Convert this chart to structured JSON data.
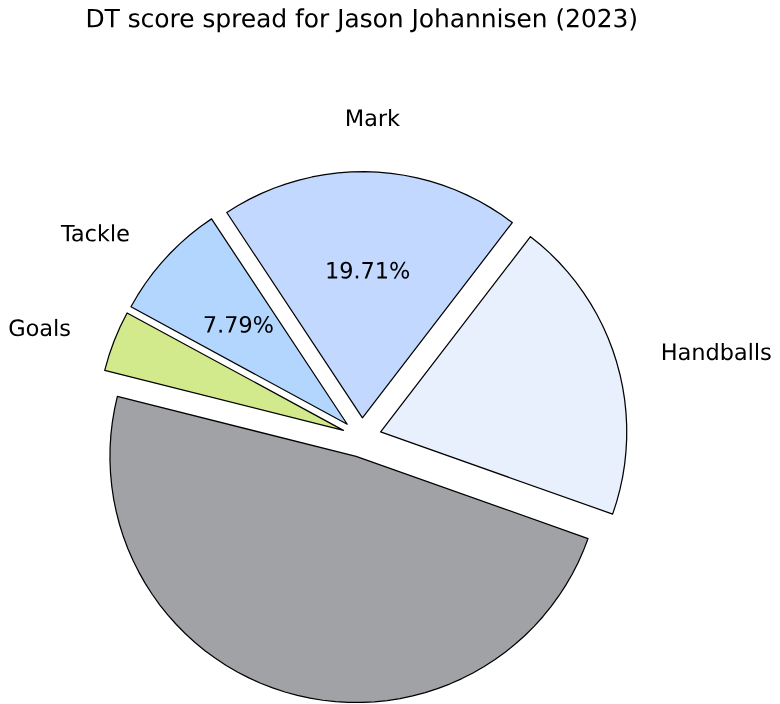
{
  "chart_data": {
    "type": "pie",
    "title": "DT score spread for Jason Johannisen (2023)",
    "categories": [
      "Handballs",
      "Mark",
      "Tackle",
      "Goals",
      null
    ],
    "values": [
      20,
      19.71,
      7.79,
      4,
      48.5
    ],
    "colors": [
      "#e8f0fe",
      "#c2d8ff",
      "#b3d6ff",
      "#d3ea8c",
      "#a0a2a5"
    ],
    "value_labels": [
      null,
      "19.71%",
      "7.79%",
      null,
      null
    ]
  }
}
